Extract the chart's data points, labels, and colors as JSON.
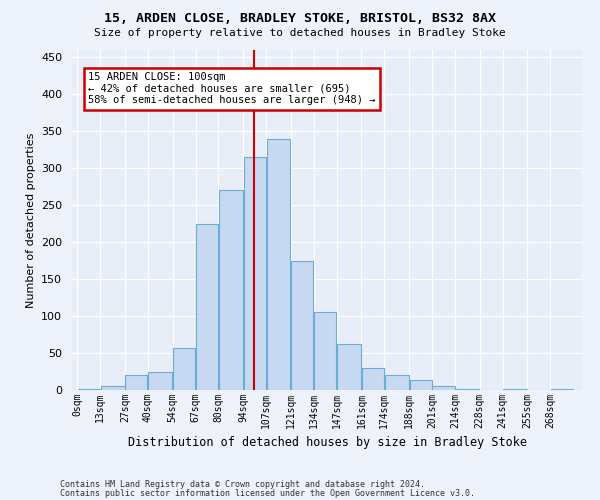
{
  "title": "15, ARDEN CLOSE, BRADLEY STOKE, BRISTOL, BS32 8AX",
  "subtitle": "Size of property relative to detached houses in Bradley Stoke",
  "xlabel": "Distribution of detached houses by size in Bradley Stoke",
  "ylabel": "Number of detached properties",
  "bar_color": "#c6d9f0",
  "bar_edge_color": "#6aaed6",
  "background_color": "#e8eef8",
  "fig_background_color": "#edf2fb",
  "grid_color": "#ffffff",
  "annotation_box_color": "#cc0000",
  "annotation_text": "15 ARDEN CLOSE: 100sqm\n← 42% of detached houses are smaller (695)\n58% of semi-detached houses are larger (948) →",
  "vline_x": 100,
  "vline_color": "#cc0000",
  "categories": [
    "0sqm",
    "13sqm",
    "27sqm",
    "40sqm",
    "54sqm",
    "67sqm",
    "80sqm",
    "94sqm",
    "107sqm",
    "121sqm",
    "134sqm",
    "147sqm",
    "161sqm",
    "174sqm",
    "188sqm",
    "201sqm",
    "214sqm",
    "228sqm",
    "241sqm",
    "255sqm",
    "268sqm"
  ],
  "bin_edges": [
    0,
    13,
    27,
    40,
    54,
    67,
    80,
    94,
    107,
    121,
    134,
    147,
    161,
    174,
    188,
    201,
    214,
    228,
    241,
    255,
    268,
    281
  ],
  "values": [
    2,
    5,
    20,
    25,
    57,
    225,
    270,
    315,
    340,
    175,
    105,
    62,
    30,
    20,
    13,
    5,
    2,
    0,
    2,
    0,
    2
  ],
  "ylim": [
    0,
    460
  ],
  "yticks": [
    0,
    50,
    100,
    150,
    200,
    250,
    300,
    350,
    400,
    450
  ],
  "footnote1": "Contains HM Land Registry data © Crown copyright and database right 2024.",
  "footnote2": "Contains public sector information licensed under the Open Government Licence v3.0."
}
